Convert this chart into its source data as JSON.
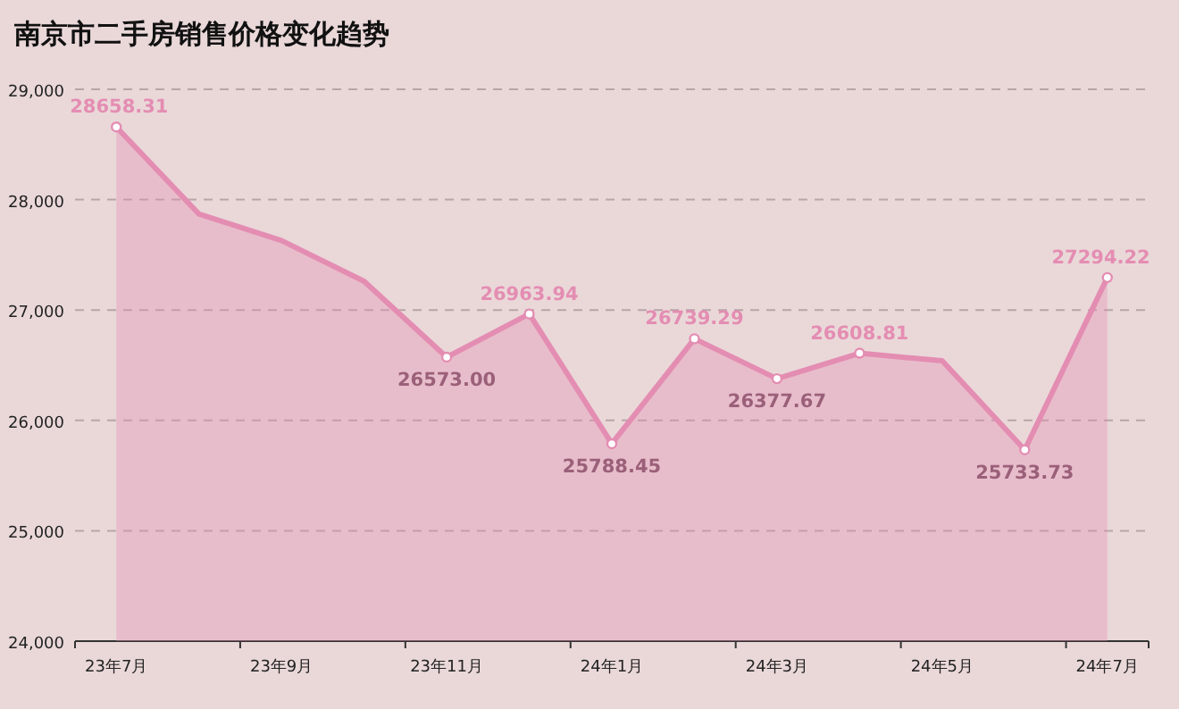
{
  "chart_data": {
    "type": "area",
    "title": "南京市二手房销售价格变化趋势",
    "categories": [
      "23年7月",
      null,
      "23年9月",
      null,
      "23年11月",
      null,
      "24年1月",
      null,
      "24年3月",
      null,
      "24年5月",
      null,
      "24年7月"
    ],
    "values": [
      28658.31,
      27870,
      27630,
      27260,
      26573.0,
      26963.94,
      25788.45,
      26739.29,
      26377.67,
      26608.81,
      26540,
      25733.73,
      27294.22
    ],
    "value_labels": [
      "28658.31",
      null,
      null,
      null,
      "26573.00",
      "26963.94",
      "25788.45",
      "26739.29",
      "26377.67",
      "26608.81",
      null,
      "25733.73",
      "27294.22"
    ],
    "color": "#e48db2",
    "ylim": [
      24000,
      29000
    ],
    "yticks": [
      {
        "value": 24000,
        "label": "24,000"
      },
      {
        "value": 25000,
        "label": "25,000"
      },
      {
        "value": 26000,
        "label": "26,000"
      },
      {
        "value": 27000,
        "label": "27,000"
      },
      {
        "value": 28000,
        "label": "28,000"
      },
      {
        "value": 29000,
        "label": "29,000"
      }
    ],
    "grid": "y",
    "marker": "circle"
  }
}
